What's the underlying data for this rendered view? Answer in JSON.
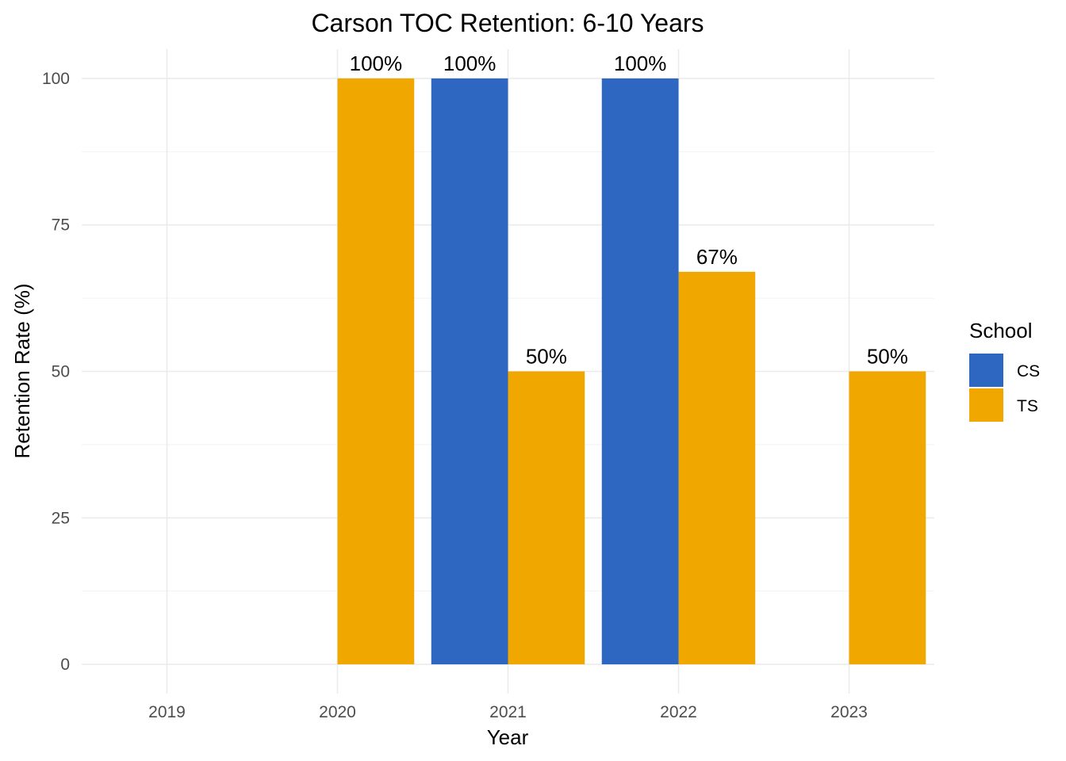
{
  "chart_data": {
    "type": "bar",
    "title": "Carson TOC Retention: 6-10 Years",
    "xlabel": "Year",
    "ylabel": "Retention Rate (%)",
    "categories": [
      "2019",
      "2020",
      "2021",
      "2022",
      "2023"
    ],
    "ylim": [
      -5,
      105
    ],
    "yticks": [
      0,
      25,
      50,
      75,
      100
    ],
    "grid": true,
    "legend": {
      "title": "School",
      "placement": "right"
    },
    "series": [
      {
        "name": "CS",
        "color": "#2E67C2",
        "values": [
          null,
          null,
          100,
          100,
          null
        ],
        "labels": [
          null,
          null,
          "100%",
          "100%",
          null
        ]
      },
      {
        "name": "TS",
        "color": "#F0A800",
        "values": [
          null,
          100,
          50,
          67,
          50
        ],
        "labels": [
          null,
          "100%",
          "50%",
          "67%",
          "50%"
        ]
      }
    ]
  }
}
